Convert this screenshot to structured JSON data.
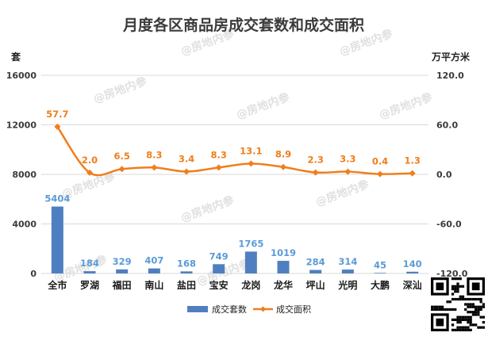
{
  "title": "月度各区商品房成交套数和成交面积",
  "left_unit": "套",
  "right_unit": "万平方米",
  "watermark": "房地内参",
  "colors": {
    "bar": "#4f7fc0",
    "line": "#f07e1b",
    "bar_label": "#5b9bd5",
    "line_label": "#f07e1b",
    "grid": "#d9d9d9"
  },
  "legend": [
    {
      "name": "成交套数",
      "marker": "bar"
    },
    {
      "name": "成交面积",
      "marker": "line"
    }
  ],
  "chart_data": {
    "type": "bar",
    "title": "月度各区商品房成交套数和成交面积",
    "categories": [
      "全市",
      "罗湖",
      "福田",
      "南山",
      "盐田",
      "宝安",
      "龙岗",
      "龙华",
      "坪山",
      "光明",
      "大鹏",
      "深汕"
    ],
    "series": [
      {
        "name": "成交套数",
        "type": "bar",
        "axis": "left",
        "values": [
          5404,
          184,
          329,
          407,
          168,
          749,
          1765,
          1019,
          284,
          314,
          45,
          140
        ]
      },
      {
        "name": "成交面积",
        "type": "line",
        "axis": "right",
        "values": [
          57.7,
          2.0,
          6.5,
          8.3,
          3.4,
          8.3,
          13.1,
          8.9,
          2.3,
          3.3,
          0.4,
          1.3
        ]
      }
    ],
    "y_left": {
      "label": "套",
      "lim": [
        0,
        16000
      ],
      "ticks": [
        0,
        4000,
        8000,
        12000,
        16000
      ],
      "tick_labels": [
        "0",
        "4000",
        "8000",
        "12000",
        "16000"
      ]
    },
    "y_right": {
      "label": "万平方米",
      "lim": [
        -120,
        120
      ],
      "ticks": [
        -120,
        -60,
        0,
        60,
        120
      ],
      "tick_labels": [
        "-120.0",
        "-60.0",
        "0.0",
        "60.0",
        "120.0"
      ]
    },
    "grid": true,
    "legend_position": "bottom"
  }
}
